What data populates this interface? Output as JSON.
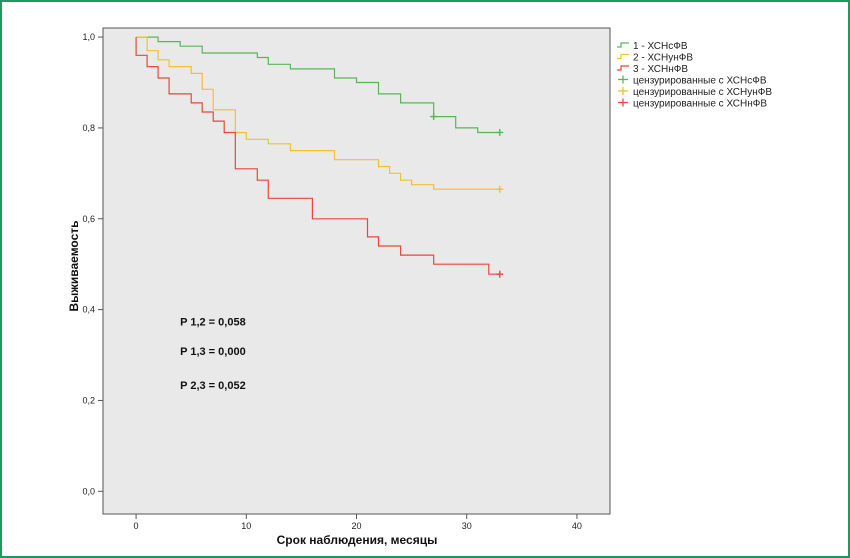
{
  "chart_data": {
    "type": "line",
    "subtype": "kaplan-meier step survival curves",
    "xlabel": "Срок наблюдения, месяцы",
    "ylabel": "Выживаемость",
    "xlim": [
      -3,
      43
    ],
    "ylim": [
      -0.05,
      1.02
    ],
    "xticks": [
      0,
      10,
      20,
      30,
      40
    ],
    "xtick_labels": [
      "0",
      "10",
      "20",
      "30",
      "40"
    ],
    "yticks": [
      0.0,
      0.2,
      0.4,
      0.6,
      0.8,
      1.0
    ],
    "ytick_labels": [
      "0,0",
      "0,2",
      "0,4",
      "0,6",
      "0,8",
      "1,0"
    ],
    "grid": false,
    "background": "#e9e9e9",
    "legend_position": "right, top",
    "series": [
      {
        "name": "1 - ХСНсФВ",
        "color": "#5ab55a",
        "points": [
          [
            0,
            1.0
          ],
          [
            2,
            1.0
          ],
          [
            2,
            0.99
          ],
          [
            4,
            0.99
          ],
          [
            4,
            0.98
          ],
          [
            6,
            0.98
          ],
          [
            6,
            0.965
          ],
          [
            11,
            0.965
          ],
          [
            11,
            0.955
          ],
          [
            12,
            0.955
          ],
          [
            12,
            0.94
          ],
          [
            14,
            0.94
          ],
          [
            14,
            0.93
          ],
          [
            18,
            0.93
          ],
          [
            18,
            0.91
          ],
          [
            20,
            0.91
          ],
          [
            20,
            0.9
          ],
          [
            22,
            0.9
          ],
          [
            22,
            0.875
          ],
          [
            24,
            0.875
          ],
          [
            24,
            0.855
          ],
          [
            27,
            0.855
          ],
          [
            27,
            0.825
          ],
          [
            29,
            0.825
          ],
          [
            29,
            0.8
          ],
          [
            31,
            0.8
          ],
          [
            31,
            0.79
          ],
          [
            33,
            0.79
          ]
        ],
        "censor": [
          [
            27,
            0.825
          ],
          [
            33,
            0.79
          ]
        ]
      },
      {
        "name": "2 - ХСНунФВ",
        "color": "#f2c12e",
        "points": [
          [
            0,
            1.0
          ],
          [
            1,
            1.0
          ],
          [
            1,
            0.97
          ],
          [
            2,
            0.97
          ],
          [
            2,
            0.95
          ],
          [
            3,
            0.95
          ],
          [
            3,
            0.935
          ],
          [
            5,
            0.935
          ],
          [
            5,
            0.92
          ],
          [
            6,
            0.92
          ],
          [
            6,
            0.885
          ],
          [
            7,
            0.885
          ],
          [
            7,
            0.84
          ],
          [
            9,
            0.84
          ],
          [
            9,
            0.79
          ],
          [
            10,
            0.79
          ],
          [
            10,
            0.775
          ],
          [
            12,
            0.775
          ],
          [
            12,
            0.765
          ],
          [
            14,
            0.765
          ],
          [
            14,
            0.75
          ],
          [
            18,
            0.75
          ],
          [
            18,
            0.73
          ],
          [
            22,
            0.73
          ],
          [
            22,
            0.715
          ],
          [
            23,
            0.715
          ],
          [
            23,
            0.7
          ],
          [
            24,
            0.7
          ],
          [
            24,
            0.685
          ],
          [
            25,
            0.685
          ],
          [
            25,
            0.675
          ],
          [
            27,
            0.675
          ],
          [
            27,
            0.665
          ],
          [
            33,
            0.665
          ]
        ],
        "censor": [
          [
            33,
            0.665
          ]
        ]
      },
      {
        "name": "3 - ХСНнФВ",
        "color": "#e8473c",
        "points": [
          [
            0,
            1.0
          ],
          [
            0,
            0.96
          ],
          [
            1,
            0.96
          ],
          [
            1,
            0.935
          ],
          [
            2,
            0.935
          ],
          [
            2,
            0.91
          ],
          [
            3,
            0.91
          ],
          [
            3,
            0.875
          ],
          [
            5,
            0.875
          ],
          [
            5,
            0.855
          ],
          [
            6,
            0.855
          ],
          [
            6,
            0.835
          ],
          [
            7,
            0.835
          ],
          [
            7,
            0.815
          ],
          [
            8,
            0.815
          ],
          [
            8,
            0.79
          ],
          [
            9,
            0.79
          ],
          [
            9,
            0.71
          ],
          [
            11,
            0.71
          ],
          [
            11,
            0.685
          ],
          [
            12,
            0.685
          ],
          [
            12,
            0.645
          ],
          [
            16,
            0.645
          ],
          [
            16,
            0.6
          ],
          [
            21,
            0.6
          ],
          [
            21,
            0.56
          ],
          [
            22,
            0.56
          ],
          [
            22,
            0.54
          ],
          [
            24,
            0.54
          ],
          [
            24,
            0.52
          ],
          [
            27,
            0.52
          ],
          [
            27,
            0.5
          ],
          [
            32,
            0.5
          ],
          [
            32,
            0.478
          ],
          [
            33,
            0.478
          ]
        ],
        "censor": [
          [
            33,
            0.478
          ]
        ]
      }
    ],
    "legend": [
      {
        "label": "1 - ХСНсФВ",
        "color": "#5ab55a",
        "kind": "line"
      },
      {
        "label": "2 - ХСНунФВ",
        "color": "#f2c12e",
        "kind": "line"
      },
      {
        "label": "3 - ХСНнФВ",
        "color": "#e8473c",
        "kind": "line"
      },
      {
        "label": "цензурированные с ХСНсФВ",
        "color": "#5ab55a",
        "kind": "censor"
      },
      {
        "label": "цензурированные с ХСНунФВ",
        "color": "#f2c12e",
        "kind": "censor"
      },
      {
        "label": "цензурированные с ХСНнФВ",
        "color": "#e8473c",
        "kind": "censor"
      }
    ],
    "annotations": [
      {
        "text": "P 1,2 = 0,058",
        "x": 4,
        "y": 0.365
      },
      {
        "text": "P 1,3 = 0,000",
        "x": 4,
        "y": 0.3
      },
      {
        "text": "P 2,3 = 0,052",
        "x": 4,
        "y": 0.225
      }
    ]
  },
  "colors": {
    "frame_border": "#1a9a5c",
    "plot_background": "#e9e9e9"
  }
}
